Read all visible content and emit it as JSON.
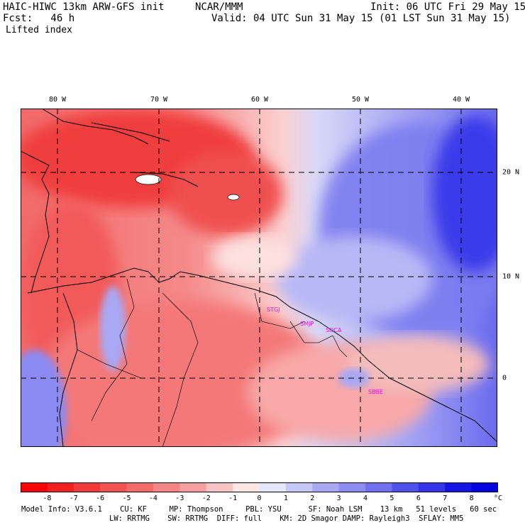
{
  "header": {
    "model": "HAIC-HIWC 13km ARW-GFS init",
    "org": "NCAR/MMM",
    "init": "Init: 06 UTC Fri 29 May 15",
    "fcst": "Fcst:   46 h",
    "valid": "Valid: 04 UTC Sun 31 May 15 (01 LST Sun 31 May 15)",
    "field": "Lifted index"
  },
  "map": {
    "lon_labels": [
      "80 W",
      "70 W",
      "60 W",
      "50 W",
      "40 W"
    ],
    "lat_labels": [
      "20 N",
      "10 N",
      "0"
    ],
    "stations": [
      "STGJ",
      "SMJP",
      "SOCA",
      "SBBE"
    ]
  },
  "colorbar": {
    "labels": [
      "-8",
      "-7",
      "-6",
      "-5",
      "-4",
      "-3",
      "-2",
      "-1",
      "0",
      "1",
      "2",
      "3",
      "4",
      "5",
      "6",
      "7",
      "8"
    ],
    "unit": "°C",
    "colors": [
      "#ff0000",
      "#f41e1e",
      "#f23a3a",
      "#f25252",
      "#f26a6a",
      "#f58484",
      "#f8a0a0",
      "#fbc4c4",
      "#fde6e6",
      "#e6e6fa",
      "#c8c8f8",
      "#a8a8f5",
      "#8c8cf2",
      "#7070f0",
      "#5050ec",
      "#3434ea",
      "#1414e6",
      "#0000e0"
    ]
  },
  "model_info": {
    "line1": "Model Info: V3.6.1    CU: KF     MP: Thompson     PBL: YSU      SF: Noah LSM    13 km   51 levels   60 sec",
    "line2": "LW: RRTMG    SW: RRTMG  DIFF: full    KM: 2D Smagor DAMP: Rayleigh3  SFLAY: MM5"
  }
}
